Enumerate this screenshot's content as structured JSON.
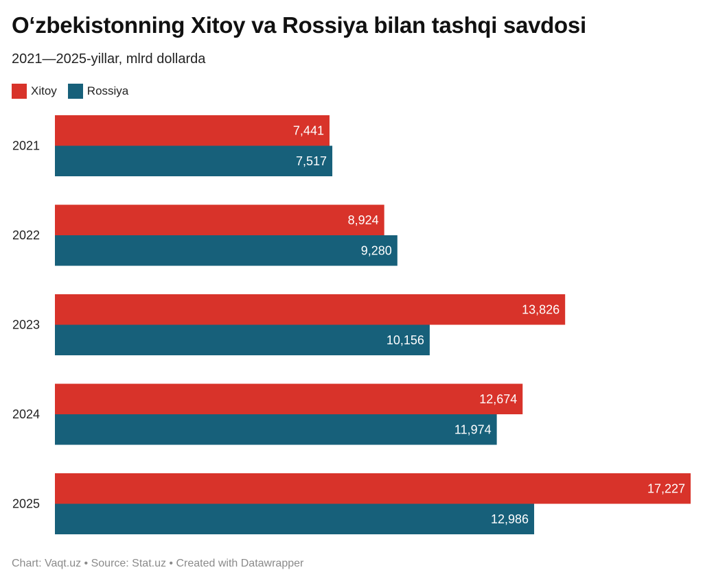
{
  "title": "O‘zbekistonning Xitoy va Rossiya bilan tashqi savdosi",
  "subtitle": "2021—2025-yillar, mlrd dollarda",
  "footer": {
    "credit": "Chart: Vaqt.uz",
    "source": "Source: Stat.uz",
    "created": "Created with Datawrapper",
    "separator": " • "
  },
  "legend": [
    {
      "label": "Xitoy",
      "color": "#d8332a"
    },
    {
      "label": "Rossiya",
      "color": "#17607a"
    }
  ],
  "chart_data": {
    "type": "bar",
    "orientation": "horizontal",
    "grouped": true,
    "categories": [
      "2021",
      "2022",
      "2023",
      "2024",
      "2025"
    ],
    "series": [
      {
        "name": "Xitoy",
        "color": "#d8332a",
        "values": [
          7.441,
          8.924,
          13.826,
          12.674,
          17.227
        ],
        "labels": [
          "7,441",
          "8,924",
          "13,826",
          "12,674",
          "17,227"
        ]
      },
      {
        "name": "Rossiya",
        "color": "#17607a",
        "values": [
          7.517,
          9.28,
          10.156,
          11.974,
          12.986
        ],
        "labels": [
          "7,517",
          "9,280",
          "10,156",
          "11,974",
          "12,986"
        ]
      }
    ],
    "xlim": [
      0,
      17.227
    ],
    "grid": false,
    "legend_position": "top-left",
    "data_labels": "inside-end"
  }
}
